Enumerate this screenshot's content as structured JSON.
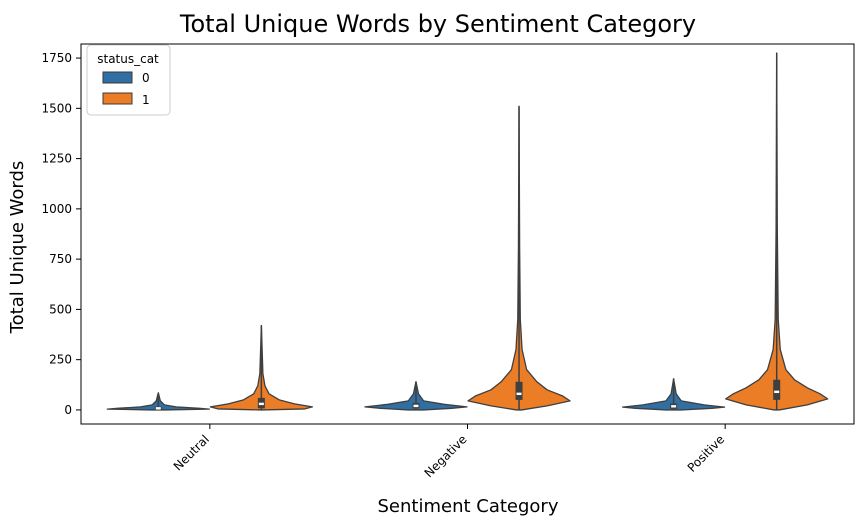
{
  "chart_data": {
    "type": "violin",
    "title": "Total Unique Words by Sentiment Category",
    "xlabel": "Sentiment Category",
    "ylabel": "Total Unique Words",
    "categories": [
      "Neutral",
      "Negative",
      "Positive"
    ],
    "ylim": [
      -70,
      1820
    ],
    "yticks": [
      0,
      250,
      500,
      750,
      1000,
      1250,
      1500,
      1750
    ],
    "ytick_labels": [
      "0",
      "250",
      "500",
      "750",
      "1000",
      "1250",
      "1500",
      "1750"
    ],
    "grid": false,
    "legend": {
      "title": "status_cat",
      "placement": "top-left",
      "entries": [
        "0",
        "1"
      ]
    },
    "series": [
      {
        "status": "0",
        "color": "#2f6fa3",
        "violins": [
          {
            "category": "Neutral",
            "min": 0,
            "max": 85,
            "q1": 3,
            "median": 8,
            "q3": 16,
            "profile": [
              [
                0,
                0.15
              ],
              [
                4,
                1.0
              ],
              [
                8,
                0.8
              ],
              [
                15,
                0.35
              ],
              [
                25,
                0.12
              ],
              [
                45,
                0.04
              ],
              [
                85,
                0.0
              ]
            ]
          },
          {
            "category": "Negative",
            "min": 0,
            "max": 140,
            "q1": 8,
            "median": 20,
            "q3": 35,
            "profile": [
              [
                0,
                0.15
              ],
              [
                8,
                0.7
              ],
              [
                15,
                1.0
              ],
              [
                28,
                0.55
              ],
              [
                45,
                0.15
              ],
              [
                80,
                0.05
              ],
              [
                140,
                0.0
              ]
            ]
          },
          {
            "category": "Positive",
            "min": 0,
            "max": 155,
            "q1": 6,
            "median": 18,
            "q3": 32,
            "profile": [
              [
                0,
                0.15
              ],
              [
                8,
                0.75
              ],
              [
                14,
                1.0
              ],
              [
                25,
                0.6
              ],
              [
                45,
                0.15
              ],
              [
                80,
                0.05
              ],
              [
                155,
                0.0
              ]
            ]
          }
        ]
      },
      {
        "status": "1",
        "color": "#ea7d26",
        "violins": [
          {
            "category": "Neutral",
            "min": 0,
            "max": 420,
            "q1": 8,
            "median": 30,
            "q3": 60,
            "profile": [
              [
                0,
                0.02
              ],
              [
                5,
                0.85
              ],
              [
                15,
                1.0
              ],
              [
                30,
                0.65
              ],
              [
                50,
                0.35
              ],
              [
                80,
                0.15
              ],
              [
                120,
                0.07
              ],
              [
                180,
                0.03
              ],
              [
                420,
                0.0
              ]
            ]
          },
          {
            "category": "Negative",
            "min": 0,
            "max": 1510,
            "q1": 50,
            "median": 80,
            "q3": 140,
            "profile": [
              [
                0,
                0.05
              ],
              [
                20,
                0.55
              ],
              [
                45,
                1.0
              ],
              [
                70,
                0.85
              ],
              [
                100,
                0.55
              ],
              [
                140,
                0.35
              ],
              [
                200,
                0.15
              ],
              [
                300,
                0.06
              ],
              [
                450,
                0.025
              ],
              [
                800,
                0.012
              ],
              [
                1510,
                0.0
              ]
            ]
          },
          {
            "category": "Positive",
            "min": 0,
            "max": 1775,
            "q1": 50,
            "median": 90,
            "q3": 150,
            "profile": [
              [
                0,
                0.05
              ],
              [
                25,
                0.6
              ],
              [
                55,
                1.0
              ],
              [
                80,
                0.85
              ],
              [
                110,
                0.6
              ],
              [
                150,
                0.35
              ],
              [
                200,
                0.18
              ],
              [
                300,
                0.07
              ],
              [
                450,
                0.03
              ],
              [
                900,
                0.012
              ],
              [
                1775,
                0.0
              ]
            ]
          }
        ]
      }
    ]
  }
}
